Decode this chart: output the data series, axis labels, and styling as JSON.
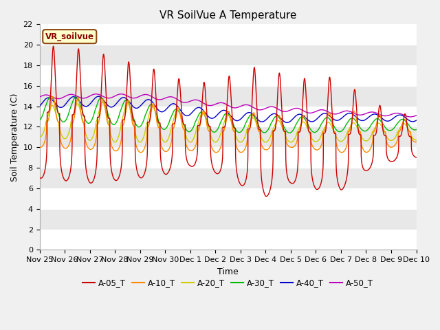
{
  "title": "VR SoilVue A Temperature",
  "xlabel": "Time",
  "ylabel": "Soil Temperature (C)",
  "ylim": [
    0,
    22
  ],
  "yticks": [
    0,
    2,
    4,
    6,
    8,
    10,
    12,
    14,
    16,
    18,
    20,
    22
  ],
  "xtick_labels": [
    "Nov 25",
    "Nov 26",
    "Nov 27",
    "Nov 28",
    "Nov 29",
    "Nov 30",
    "Dec 1",
    "Dec 2",
    "Dec 3",
    "Dec 4",
    "Dec 5",
    "Dec 6",
    "Dec 7",
    "Dec 8",
    "Dec 9",
    "Dec 10"
  ],
  "legend_label": "VR_soilvue",
  "series_colors": {
    "A-05_T": "#cc0000",
    "A-10_T": "#ff8800",
    "A-20_T": "#cccc00",
    "A-30_T": "#00bb00",
    "A-40_T": "#0000cc",
    "A-50_T": "#bb00bb"
  },
  "fig_bg_color": "#f0f0f0",
  "plot_bg_color": "#e8e8e8",
  "grid_color": "#ffffff",
  "title_fontsize": 11,
  "axis_label_fontsize": 9,
  "tick_fontsize": 8
}
